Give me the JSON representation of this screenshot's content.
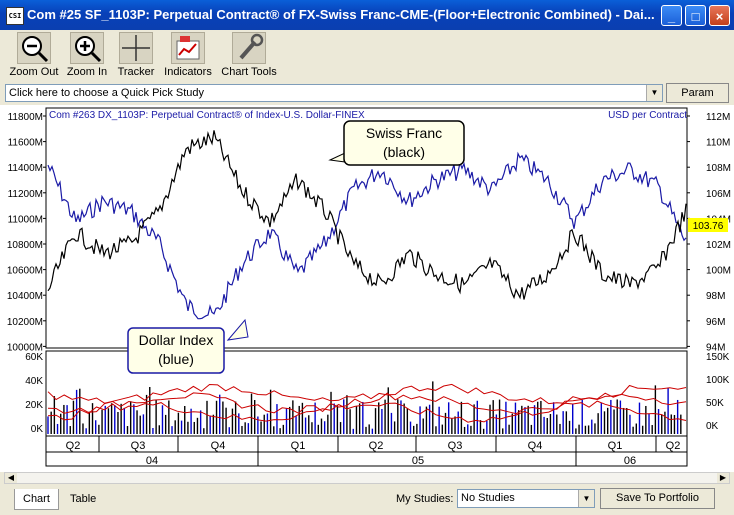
{
  "window": {
    "icon_text": "CSI",
    "title": "Com #25 SF_1103P: Perpetual Contract® of FX-Swiss Franc-CME-(Floor+Electronic Combined) - Dai...",
    "minimize": "_",
    "maximize": "□",
    "close": "×"
  },
  "toolbar": {
    "zoom_out": "Zoom Out",
    "zoom_in": "Zoom In",
    "tracker": "Tracker",
    "indicators": "Indicators",
    "chart_tools": "Chart Tools"
  },
  "quick_pick": {
    "value": "Click here to choose a Quick Pick Study"
  },
  "param_button": "Param",
  "chart": {
    "overlay_title": "Com #263 DX_1103P: Perpetual Contract® of Index-U.S. Dollar-FINEX",
    "right_axis_unit": "USD per Contract",
    "left_ticks": [
      "11800M",
      "11600M",
      "11400M",
      "11200M",
      "11000M",
      "10800M",
      "10600M",
      "10400M",
      "10200M",
      "10000M"
    ],
    "right_ticks": [
      "112M",
      "110M",
      "108M",
      "106M",
      "104M",
      "102M",
      "100M",
      "98M",
      "96M",
      "94M"
    ],
    "last_value": "103.76",
    "callout_swiss": [
      "Swiss Franc",
      "(black)"
    ],
    "callout_dollar": [
      "Dollar Index",
      "(blue)"
    ],
    "vol_left_ticks": [
      "60K",
      "40K",
      "20K",
      "0K"
    ],
    "vol_right_ticks": [
      "150K",
      "100K",
      "50K",
      "0K"
    ],
    "quarters": [
      "Q2",
      "Q3",
      "Q4",
      "Q1",
      "Q2",
      "Q3",
      "Q4",
      "Q1",
      "Q2"
    ],
    "years": [
      "04",
      "05",
      "06"
    ],
    "colors": {
      "swiss": "#000000",
      "dollar": "#1a1aa6",
      "volume": "#0000cc",
      "oi": "#cc0000",
      "last_tag": "#ffff00",
      "overlay_text": "#1a1aa6"
    }
  },
  "bottom": {
    "tab_chart": "Chart",
    "tab_table": "Table",
    "my_studies_label": "My Studies:",
    "my_studies_value": "No Studies",
    "save_button": "Save To Portfolio"
  }
}
